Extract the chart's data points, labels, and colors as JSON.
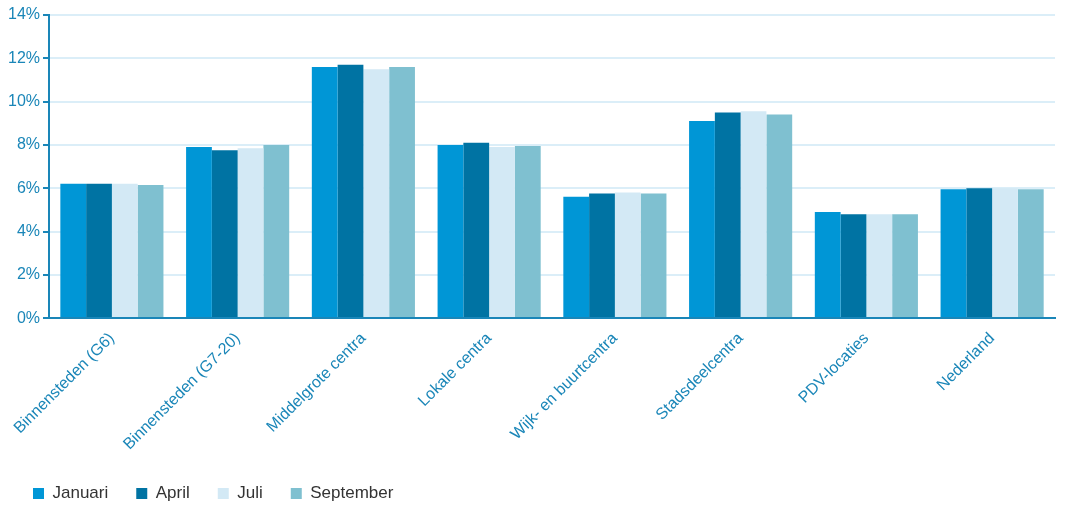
{
  "chart_data": {
    "type": "bar",
    "categories": [
      "Binnensteden (G6)",
      "Binnensteden (G7-20)",
      "Middelgrote centra",
      "Lokale centra",
      "Wijk- en buurtcentra",
      "Stadsdeelcentra",
      "PDV-locaties",
      "Nederland"
    ],
    "series": [
      {
        "name": "Januari",
        "color": "#0096d6",
        "values": [
          6.2,
          7.9,
          11.6,
          8.0,
          5.6,
          9.1,
          4.9,
          5.95
        ]
      },
      {
        "name": "April",
        "color": "#0073a3",
        "values": [
          6.2,
          7.75,
          11.7,
          8.1,
          5.75,
          9.5,
          4.8,
          6.0
        ]
      },
      {
        "name": "Juli",
        "color": "#d3e9f5",
        "values": [
          6.2,
          7.85,
          11.5,
          7.9,
          5.8,
          9.55,
          4.8,
          6.0
        ]
      },
      {
        "name": "September",
        "color": "#7fc0d0",
        "values": [
          6.15,
          8.0,
          11.6,
          7.95,
          5.75,
          9.4,
          4.8,
          5.95
        ]
      }
    ],
    "ylim": [
      0,
      14
    ],
    "yticks": [
      {
        "value": 0,
        "label": "0%"
      },
      {
        "value": 2,
        "label": "2%"
      },
      {
        "value": 4,
        "label": "4%"
      },
      {
        "value": 6,
        "label": "6%"
      },
      {
        "value": 8,
        "label": "8%"
      },
      {
        "value": 10,
        "label": "10%"
      },
      {
        "value": 12,
        "label": "12%"
      },
      {
        "value": 14,
        "label": "14%"
      }
    ],
    "grid": "y",
    "legend": "bottom left"
  }
}
